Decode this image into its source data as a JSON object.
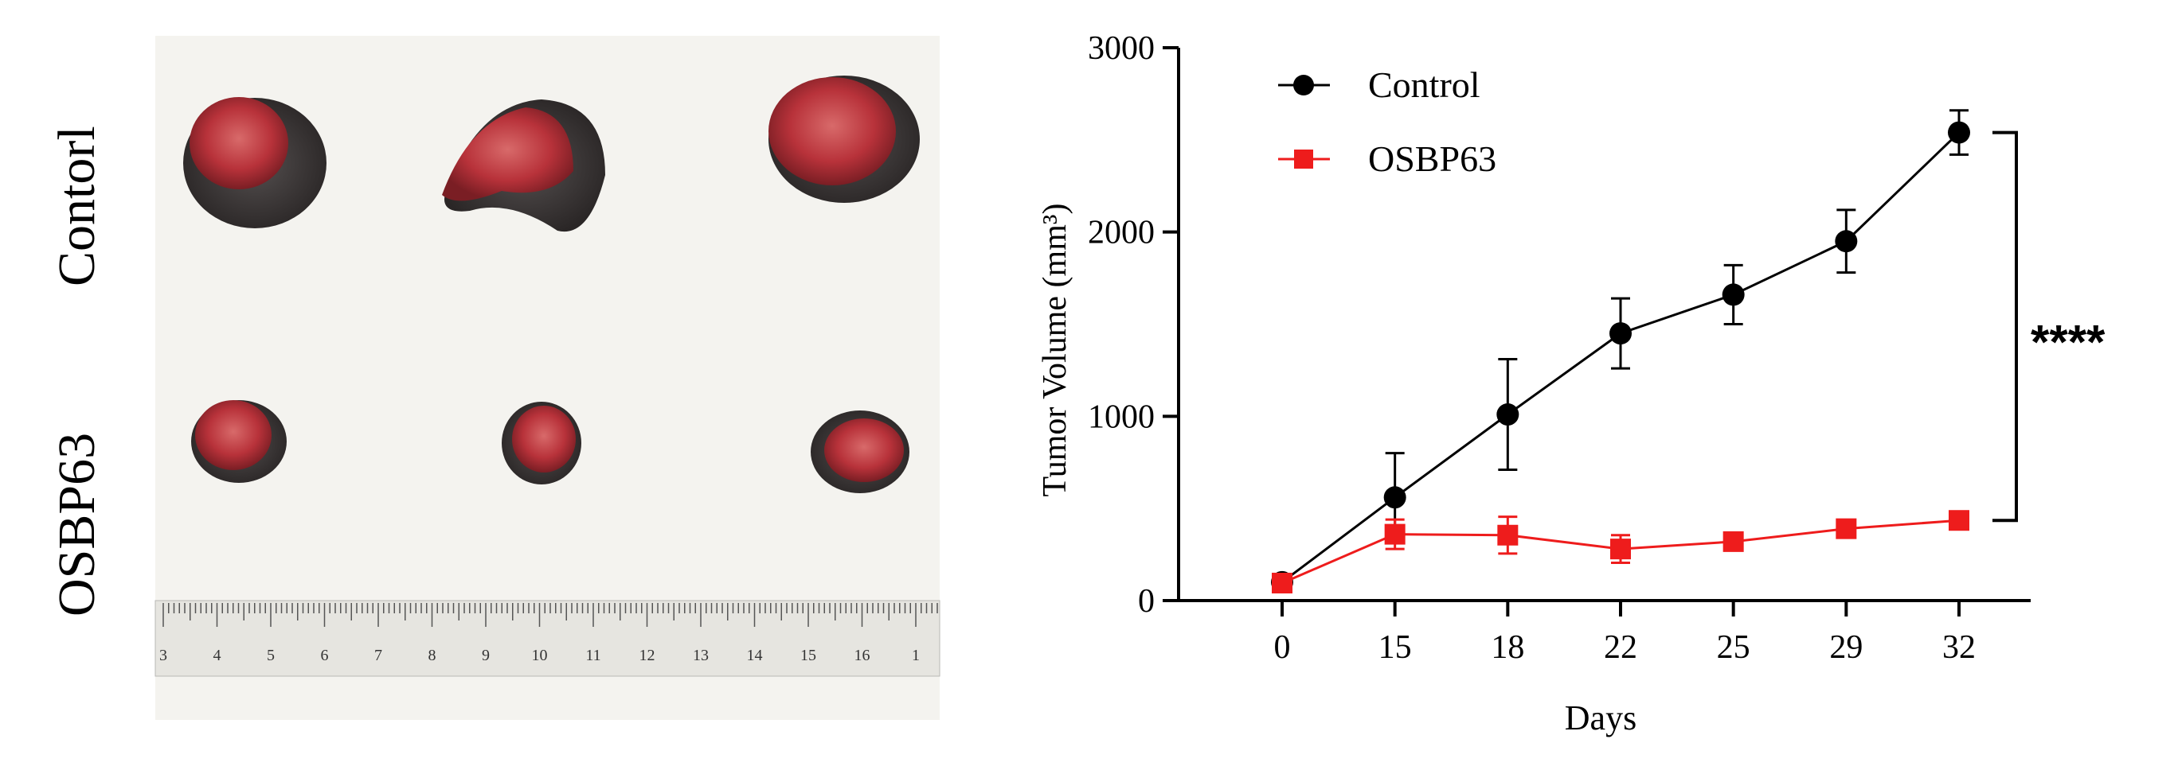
{
  "photo": {
    "row_labels": [
      "Contorl",
      "OSBP63"
    ],
    "ruler_numbers": [
      "3",
      "4",
      "5",
      "6",
      "7",
      "8",
      "9",
      "10",
      "11",
      "12",
      "13",
      "14",
      "15",
      "16",
      "1"
    ]
  },
  "colors": {
    "control": "#000000",
    "osbp63": "#ee1c1c",
    "tissue": "#b8323a",
    "fur": "#3a3434",
    "paper": "#f4f3ef"
  },
  "chart_data": {
    "type": "line",
    "xlabel": "Days",
    "ylabel": "Tumor Volume (mm³)",
    "x": [
      "0",
      "15",
      "18",
      "22",
      "25",
      "29",
      "32"
    ],
    "y_ticks": [
      0,
      1000,
      2000,
      3000
    ],
    "ylim": [
      0,
      3000
    ],
    "grid": false,
    "legend": "top-left",
    "series": [
      {
        "name": "Control",
        "marker": "circle",
        "color": "#000000",
        "values": [
          100,
          560,
          1010,
          1450,
          1660,
          1950,
          2540
        ],
        "errors": [
          30,
          240,
          300,
          190,
          160,
          170,
          120
        ]
      },
      {
        "name": "OSBP63",
        "marker": "square",
        "color": "#ee1c1c",
        "values": [
          95,
          360,
          355,
          280,
          320,
          390,
          435
        ],
        "errors": [
          20,
          80,
          100,
          75,
          30,
          30,
          30
        ]
      }
    ],
    "significance": "****"
  }
}
